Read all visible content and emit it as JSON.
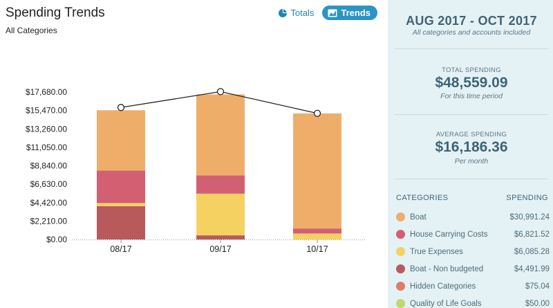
{
  "header": {
    "title": "Spending Trends",
    "subtitle": "All Categories",
    "totals_label": "Totals",
    "trends_label": "Trends"
  },
  "chart_data": {
    "type": "bar",
    "stacked": true,
    "categories": [
      "08/17",
      "09/17",
      "10/17"
    ],
    "y_ticks": [
      "$0.00",
      "$2,210.00",
      "$4,420.00",
      "$6,630.00",
      "$8,840.00",
      "$11,050.00",
      "$13,260.00",
      "$15,470.00",
      "$17,680.00"
    ],
    "ylim": [
      0,
      17680
    ],
    "series": [
      {
        "name": "Boat - Non budgeted",
        "color": "#b85a5c",
        "values": [
          4000,
          492,
          0
        ]
      },
      {
        "name": "True Expenses",
        "color": "#f5d162",
        "values": [
          370,
          5000,
          715
        ]
      },
      {
        "name": "House Carrying Costs",
        "color": "#d35f73",
        "values": [
          3900,
          2200,
          600
        ]
      },
      {
        "name": "Boat",
        "color": "#eeae6a",
        "values": [
          7230,
          9700,
          13800
        ]
      }
    ],
    "line": {
      "name": "Total",
      "values": [
        15830,
        17730,
        15130
      ]
    }
  },
  "sidebar": {
    "date_range": "AUG 2017 - OCT 2017",
    "date_range_note": "All categories and accounts included",
    "total": {
      "label": "TOTAL SPENDING",
      "value": "$48,559.09",
      "note": "For this time period"
    },
    "average": {
      "label": "AVERAGE SPENDING",
      "value": "$16,186.36",
      "note": "Per month"
    },
    "categories_header": "CATEGORIES",
    "spending_header": "SPENDING",
    "categories": [
      {
        "name": "Boat",
        "amount": "$30,991.24",
        "color": "#eeae6a"
      },
      {
        "name": "House Carrying Costs",
        "amount": "$6,821.52",
        "color": "#d35f73"
      },
      {
        "name": "True Expenses",
        "amount": "$6,085.28",
        "color": "#f5d162"
      },
      {
        "name": "Boat - Non budgeted",
        "amount": "$4,491.99",
        "color": "#b85a5c"
      },
      {
        "name": "Hidden Categories",
        "amount": "$75.04",
        "color": "#e07c63"
      },
      {
        "name": "Quality of Life Goals",
        "amount": "$50.00",
        "color": "#bfd96a"
      }
    ]
  }
}
